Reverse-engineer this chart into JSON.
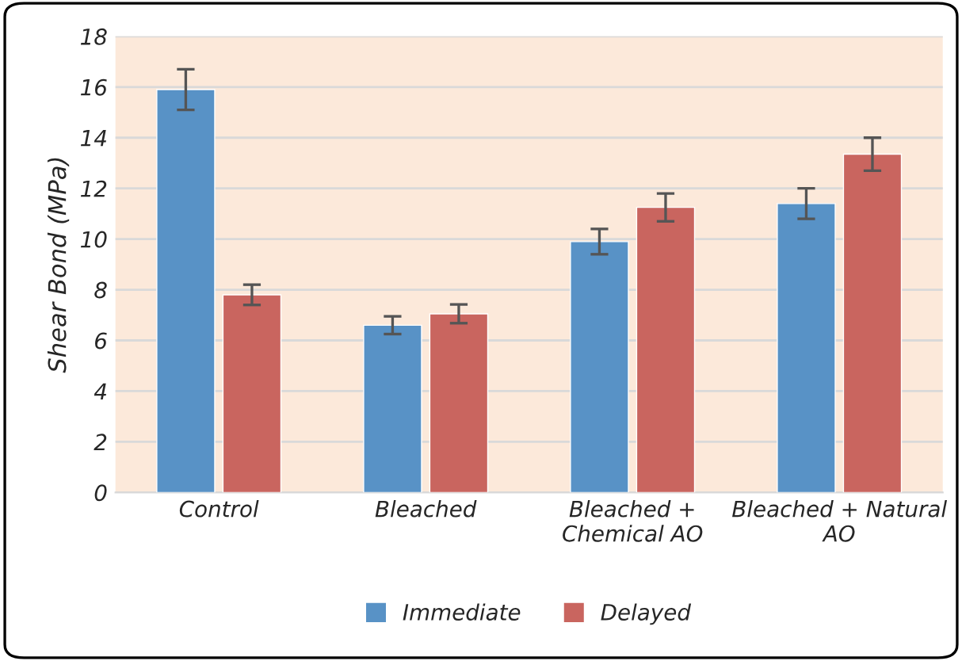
{
  "chart_data": {
    "type": "bar",
    "ylabel": "Shear Bond (MPa)",
    "categories": [
      "Control",
      "Bleached",
      "Bleached +\nChemical AO",
      "Bleached + Natural\nAO"
    ],
    "series": [
      {
        "name": "Immediate",
        "color": "#5892c6",
        "values": [
          15.9,
          6.6,
          9.9,
          11.4
        ],
        "errors": [
          0.8,
          0.35,
          0.5,
          0.6
        ]
      },
      {
        "name": "Delayed",
        "color": "#c9655f",
        "values": [
          7.8,
          7.05,
          11.25,
          13.35
        ],
        "errors": [
          0.4,
          0.37,
          0.55,
          0.65
        ]
      }
    ],
    "ylim": [
      0,
      18
    ],
    "yticks": [
      0,
      2,
      4,
      6,
      8,
      10,
      12,
      14,
      16,
      18
    ],
    "grid": "y",
    "legend": "bottom"
  }
}
